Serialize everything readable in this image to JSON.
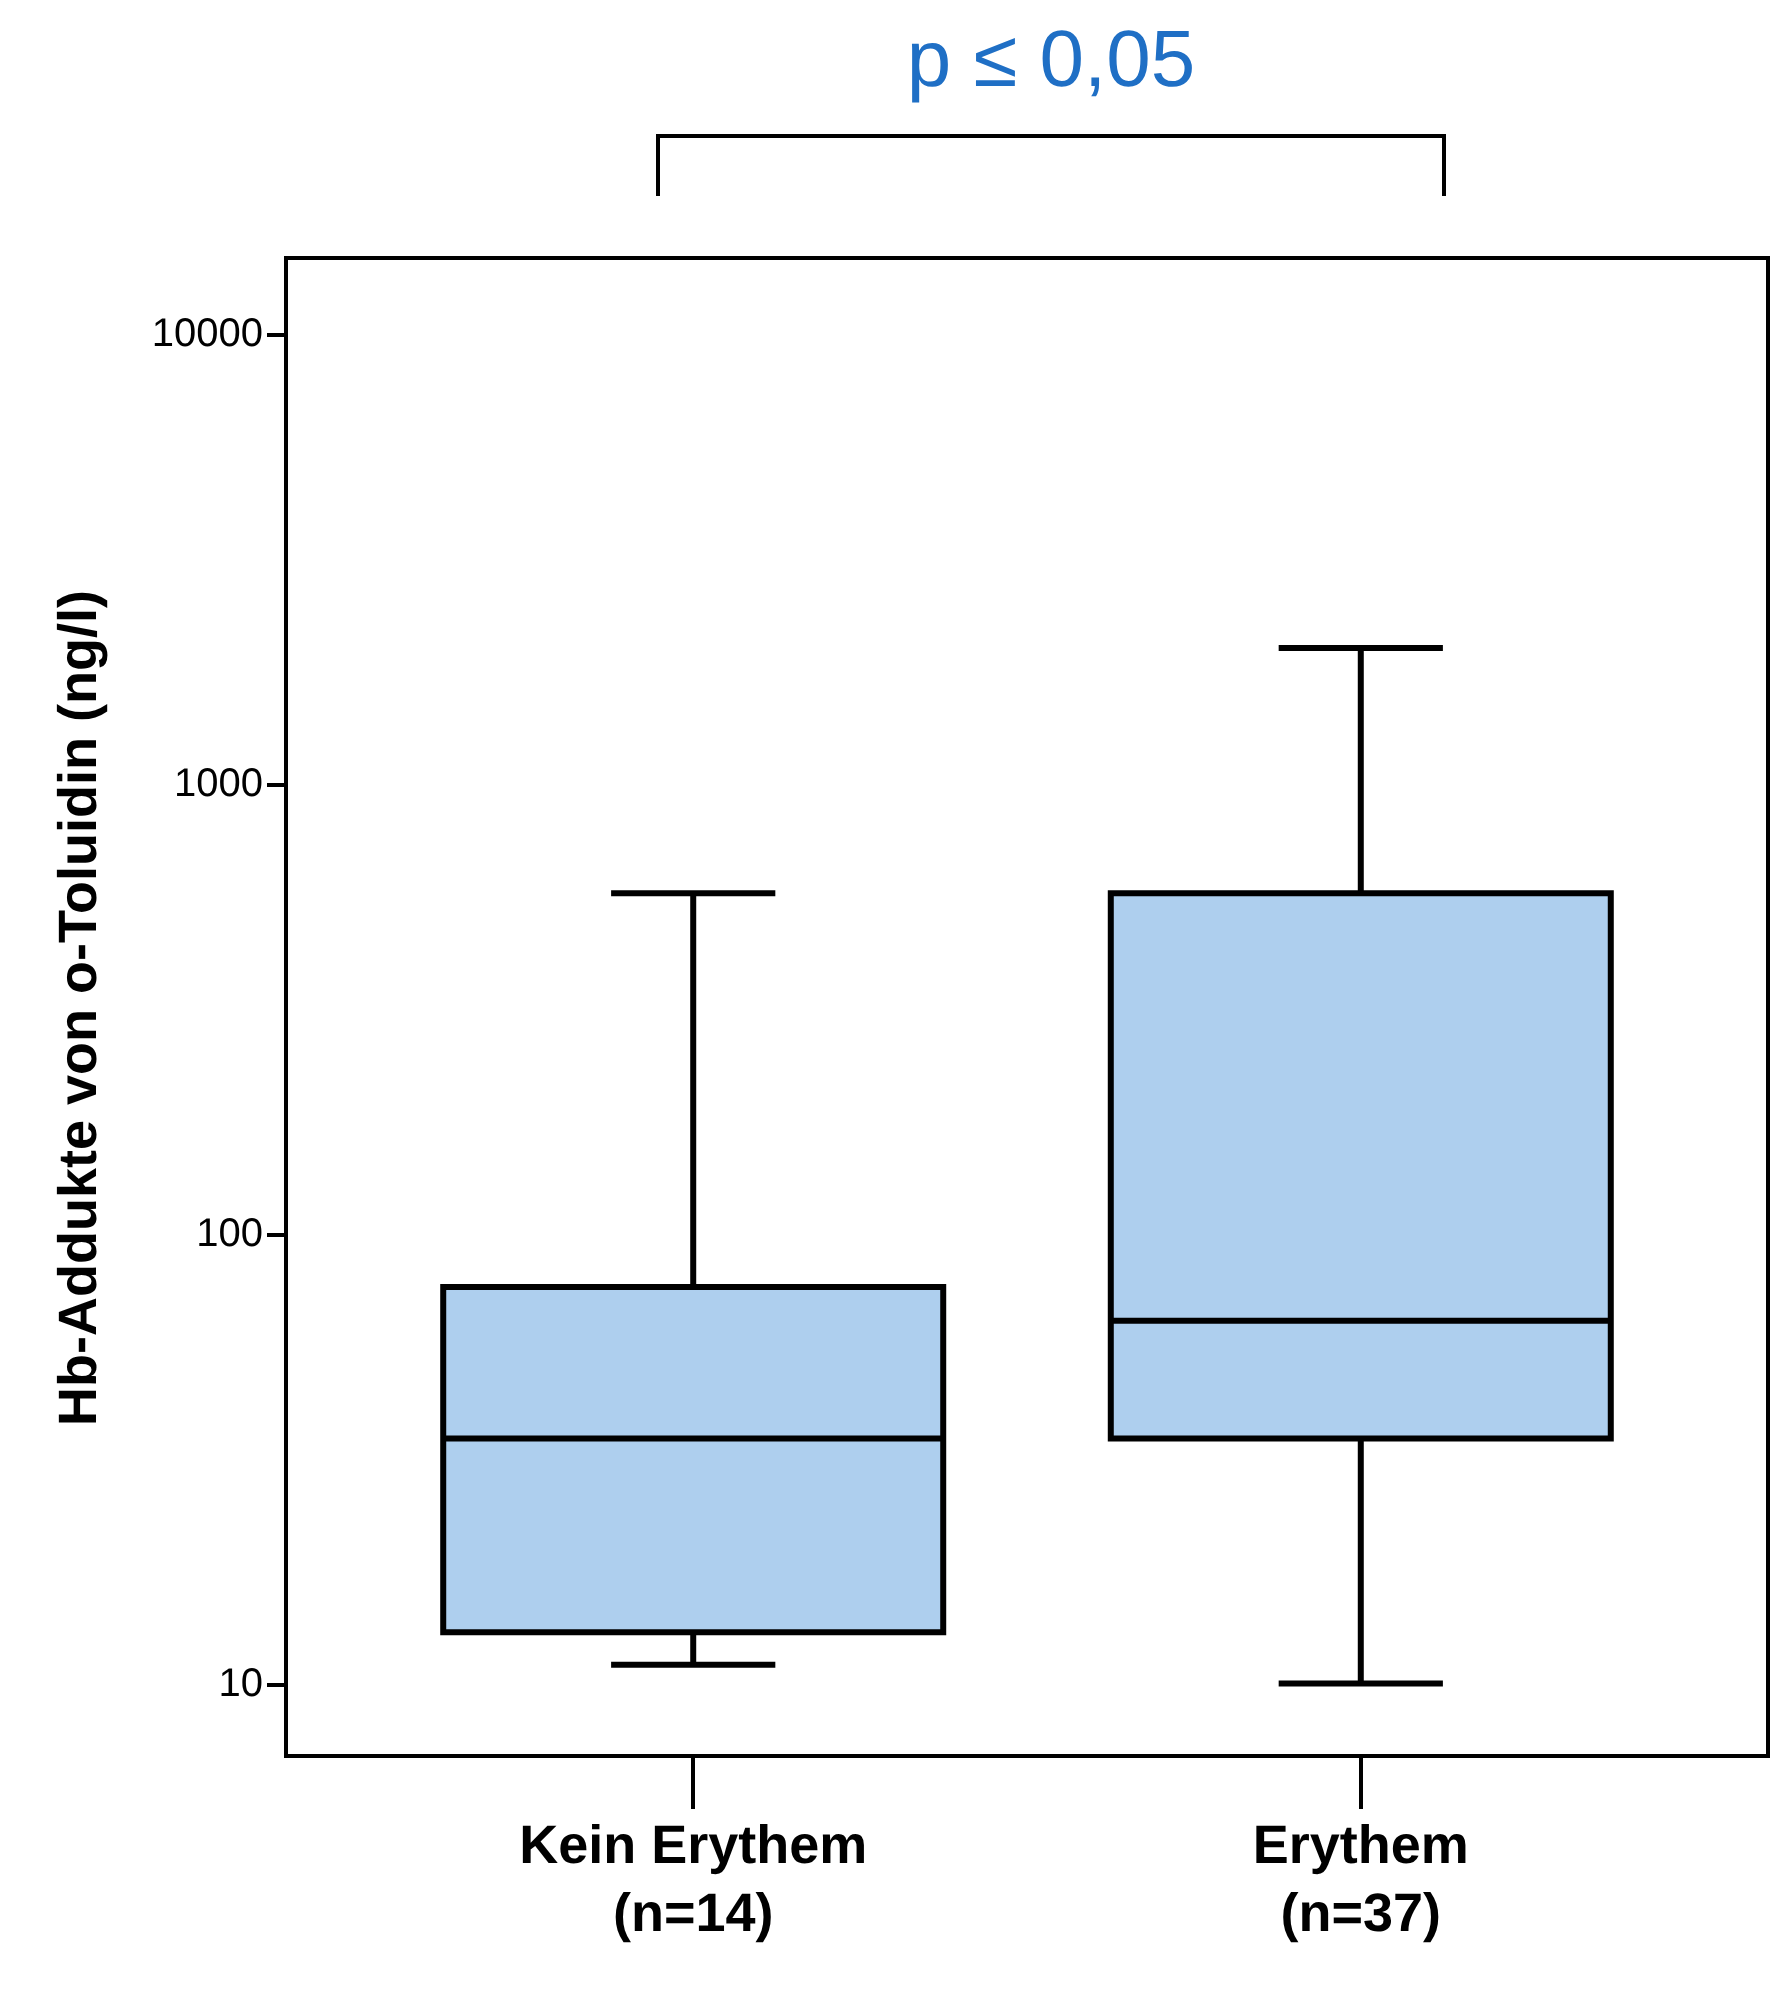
{
  "chart_data": {
    "type": "box",
    "ylabel": "Hb-Addukte von o-Toluidin (ng/l)",
    "categories": [
      "Kein Erythem\n(n=14)",
      "Erythem\n(n=37)"
    ],
    "boxes": [
      {
        "low": 11,
        "q1": 13,
        "median": 35,
        "q3": 76,
        "high": 570
      },
      {
        "low": 10,
        "q1": 35,
        "median": 64,
        "q3": 570,
        "high": 2000
      }
    ],
    "color": "#aecfee",
    "log": true,
    "ylim": [
      6.9,
      14700
    ],
    "yticks": [
      10,
      100,
      1000,
      10000
    ],
    "grid": false,
    "annotations": [
      "p ≤ 0,05"
    ]
  }
}
